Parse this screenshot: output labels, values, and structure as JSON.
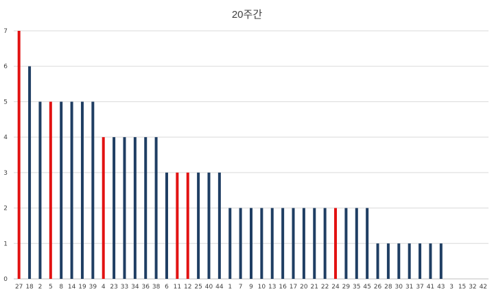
{
  "chart_data": {
    "type": "bar",
    "title": "20주간",
    "xlabel": "",
    "ylabel": "",
    "ylim": [
      0,
      7
    ],
    "yticks": [
      0,
      1,
      2,
      3,
      4,
      5,
      6,
      7
    ],
    "grid": true,
    "legend": "none",
    "categories": [
      "27",
      "18",
      "2",
      "5",
      "8",
      "14",
      "19",
      "39",
      "4",
      "23",
      "33",
      "34",
      "36",
      "38",
      "6",
      "11",
      "12",
      "25",
      "40",
      "44",
      "1",
      "7",
      "9",
      "10",
      "13",
      "16",
      "17",
      "20",
      "21",
      "22",
      "24",
      "29",
      "35",
      "45",
      "26",
      "28",
      "30",
      "31",
      "37",
      "41",
      "43",
      "3",
      "15",
      "32",
      "42"
    ],
    "values": [
      7,
      6,
      5,
      5,
      5,
      5,
      5,
      5,
      4,
      4,
      4,
      4,
      4,
      4,
      3,
      3,
      3,
      3,
      3,
      3,
      2,
      2,
      2,
      2,
      2,
      2,
      2,
      2,
      2,
      2,
      2,
      2,
      2,
      2,
      1,
      1,
      1,
      1,
      1,
      1,
      1,
      0,
      0,
      0,
      0
    ],
    "highlighted": [
      "27",
      "5",
      "4",
      "11",
      "12",
      "24"
    ],
    "colors": {
      "default": "#1f3e63",
      "highlight": "#e21212",
      "grid": "#d9d9d9",
      "axis": "#bfbfbf"
    }
  }
}
